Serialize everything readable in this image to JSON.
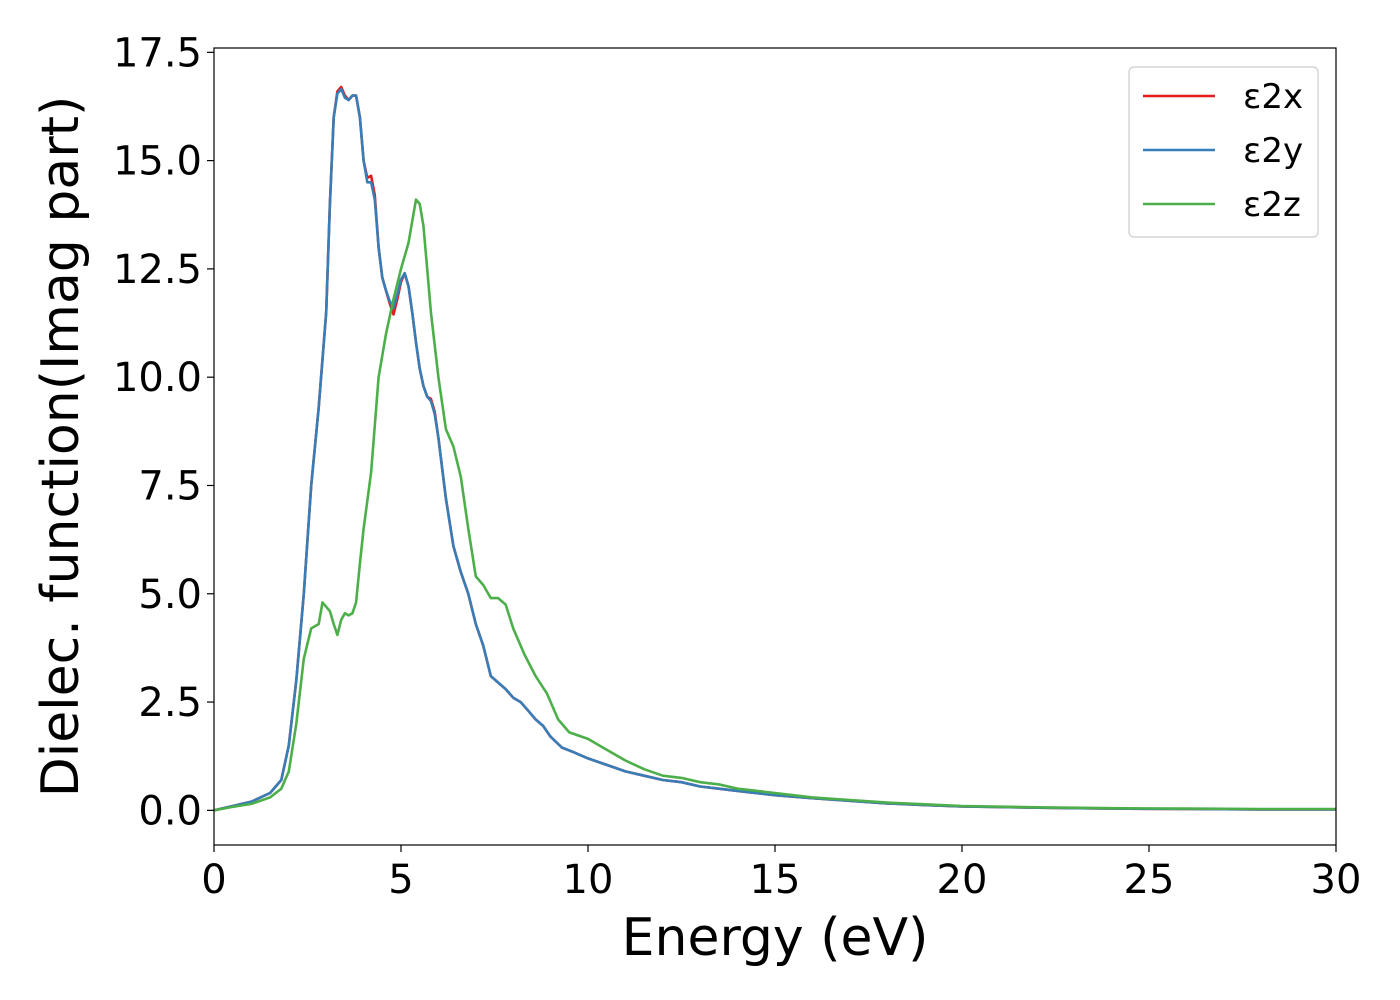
{
  "chart_data": {
    "type": "line",
    "xlabel": "Energy (eV)",
    "ylabel": "Dielec. function(Imag part)",
    "xlim": [
      0,
      30
    ],
    "ylim": [
      -0.8,
      17.6
    ],
    "xticks": [
      0,
      5,
      10,
      15,
      20,
      25,
      30
    ],
    "xtick_labels": [
      "0",
      "5",
      "10",
      "15",
      "20",
      "25",
      "30"
    ],
    "yticks": [
      0,
      2.5,
      5,
      7.5,
      10,
      12.5,
      15,
      17.5
    ],
    "ytick_labels": [
      "0.0",
      "2.5",
      "5.0",
      "7.5",
      "10.0",
      "12.5",
      "15.0",
      "17.5"
    ],
    "grid": false,
    "legend_position": "top-right",
    "series": [
      {
        "name": "ε2x",
        "color": "#e41a1c",
        "x": [
          0,
          0.5,
          1,
          1.5,
          1.8,
          2,
          2.2,
          2.4,
          2.6,
          2.8,
          3,
          3.1,
          3.2,
          3.3,
          3.4,
          3.5,
          3.6,
          3.7,
          3.8,
          3.9,
          4,
          4.1,
          4.2,
          4.3,
          4.4,
          4.5,
          4.6,
          4.7,
          4.8,
          4.9,
          5,
          5.1,
          5.2,
          5.3,
          5.4,
          5.5,
          5.6,
          5.7,
          5.8,
          5.9,
          6,
          6.2,
          6.4,
          6.6,
          6.8,
          7,
          7.2,
          7.4,
          7.6,
          7.8,
          8,
          8.2,
          8.4,
          8.6,
          8.8,
          9,
          9.3,
          9.6,
          10,
          10.5,
          11,
          11.5,
          12,
          12.5,
          13,
          13.5,
          14,
          15,
          16,
          17,
          18,
          19,
          20,
          22,
          24,
          26,
          28,
          30
        ],
        "y": [
          0,
          0.1,
          0.2,
          0.4,
          0.7,
          1.5,
          3.0,
          5.0,
          7.5,
          9.3,
          11.5,
          14.0,
          16.0,
          16.6,
          16.7,
          16.5,
          16.4,
          16.5,
          16.5,
          16.0,
          15.0,
          14.6,
          14.65,
          14.2,
          13.0,
          12.3,
          12.0,
          11.7,
          11.45,
          11.8,
          12.2,
          12.4,
          12.1,
          11.5,
          10.8,
          10.2,
          9.8,
          9.55,
          9.5,
          9.2,
          8.6,
          7.2,
          6.1,
          5.5,
          5.0,
          4.3,
          3.8,
          3.1,
          2.95,
          2.8,
          2.6,
          2.5,
          2.3,
          2.1,
          1.95,
          1.7,
          1.45,
          1.35,
          1.2,
          1.05,
          0.9,
          0.8,
          0.7,
          0.65,
          0.55,
          0.5,
          0.45,
          0.35,
          0.28,
          0.22,
          0.16,
          0.12,
          0.09,
          0.06,
          0.04,
          0.03,
          0.02,
          0.02
        ]
      },
      {
        "name": "ε2y",
        "color": "#377eb8",
        "x": [
          0,
          0.5,
          1,
          1.5,
          1.8,
          2,
          2.2,
          2.4,
          2.6,
          2.8,
          3,
          3.1,
          3.2,
          3.3,
          3.4,
          3.5,
          3.6,
          3.7,
          3.8,
          3.9,
          4,
          4.1,
          4.2,
          4.3,
          4.4,
          4.5,
          4.6,
          4.7,
          4.8,
          4.9,
          5,
          5.1,
          5.2,
          5.3,
          5.4,
          5.5,
          5.6,
          5.7,
          5.8,
          5.9,
          6,
          6.2,
          6.4,
          6.6,
          6.8,
          7,
          7.2,
          7.4,
          7.6,
          7.8,
          8,
          8.2,
          8.4,
          8.6,
          8.8,
          9,
          9.3,
          9.6,
          10,
          10.5,
          11,
          11.5,
          12,
          12.5,
          13,
          13.5,
          14,
          15,
          16,
          17,
          18,
          19,
          20,
          22,
          24,
          26,
          28,
          30
        ],
        "y": [
          0,
          0.1,
          0.2,
          0.4,
          0.7,
          1.5,
          3.0,
          5.0,
          7.5,
          9.3,
          11.5,
          14.0,
          16.0,
          16.55,
          16.65,
          16.45,
          16.4,
          16.5,
          16.5,
          16.0,
          15.0,
          14.5,
          14.5,
          14.1,
          13.0,
          12.3,
          12.0,
          11.75,
          11.6,
          11.9,
          12.25,
          12.4,
          12.1,
          11.5,
          10.8,
          10.2,
          9.8,
          9.55,
          9.45,
          9.15,
          8.6,
          7.2,
          6.1,
          5.5,
          5.0,
          4.3,
          3.8,
          3.1,
          2.95,
          2.8,
          2.6,
          2.5,
          2.3,
          2.1,
          1.95,
          1.7,
          1.45,
          1.35,
          1.2,
          1.05,
          0.9,
          0.8,
          0.7,
          0.65,
          0.55,
          0.5,
          0.45,
          0.35,
          0.28,
          0.22,
          0.16,
          0.12,
          0.09,
          0.06,
          0.04,
          0.03,
          0.02,
          0.02
        ]
      },
      {
        "name": "ε2z",
        "color": "#4daf4a",
        "x": [
          0,
          0.5,
          1,
          1.5,
          1.8,
          2,
          2.2,
          2.4,
          2.6,
          2.8,
          2.9,
          3,
          3.1,
          3.2,
          3.3,
          3.4,
          3.5,
          3.6,
          3.7,
          3.8,
          3.9,
          4,
          4.2,
          4.4,
          4.6,
          4.8,
          5,
          5.2,
          5.3,
          5.4,
          5.5,
          5.6,
          5.7,
          5.8,
          6,
          6.2,
          6.4,
          6.6,
          6.8,
          7,
          7.2,
          7.4,
          7.6,
          7.8,
          8,
          8.3,
          8.6,
          8.9,
          9.2,
          9.5,
          10,
          10.5,
          11,
          11.5,
          12,
          12.5,
          13,
          13.5,
          14,
          15,
          16,
          17,
          18,
          19,
          20,
          22,
          24,
          26,
          28,
          30
        ],
        "y": [
          0,
          0.08,
          0.15,
          0.3,
          0.5,
          0.9,
          2.0,
          3.5,
          4.2,
          4.3,
          4.8,
          4.7,
          4.6,
          4.3,
          4.05,
          4.4,
          4.55,
          4.5,
          4.55,
          4.8,
          5.7,
          6.5,
          7.8,
          10.0,
          11.0,
          11.8,
          12.5,
          13.1,
          13.6,
          14.1,
          14.0,
          13.5,
          12.5,
          11.5,
          10.0,
          8.8,
          8.4,
          7.7,
          6.5,
          5.4,
          5.2,
          4.9,
          4.9,
          4.75,
          4.2,
          3.6,
          3.1,
          2.7,
          2.1,
          1.8,
          1.65,
          1.4,
          1.15,
          0.95,
          0.8,
          0.75,
          0.65,
          0.6,
          0.5,
          0.4,
          0.3,
          0.24,
          0.18,
          0.14,
          0.1,
          0.07,
          0.05,
          0.04,
          0.03,
          0.03
        ]
      }
    ]
  }
}
